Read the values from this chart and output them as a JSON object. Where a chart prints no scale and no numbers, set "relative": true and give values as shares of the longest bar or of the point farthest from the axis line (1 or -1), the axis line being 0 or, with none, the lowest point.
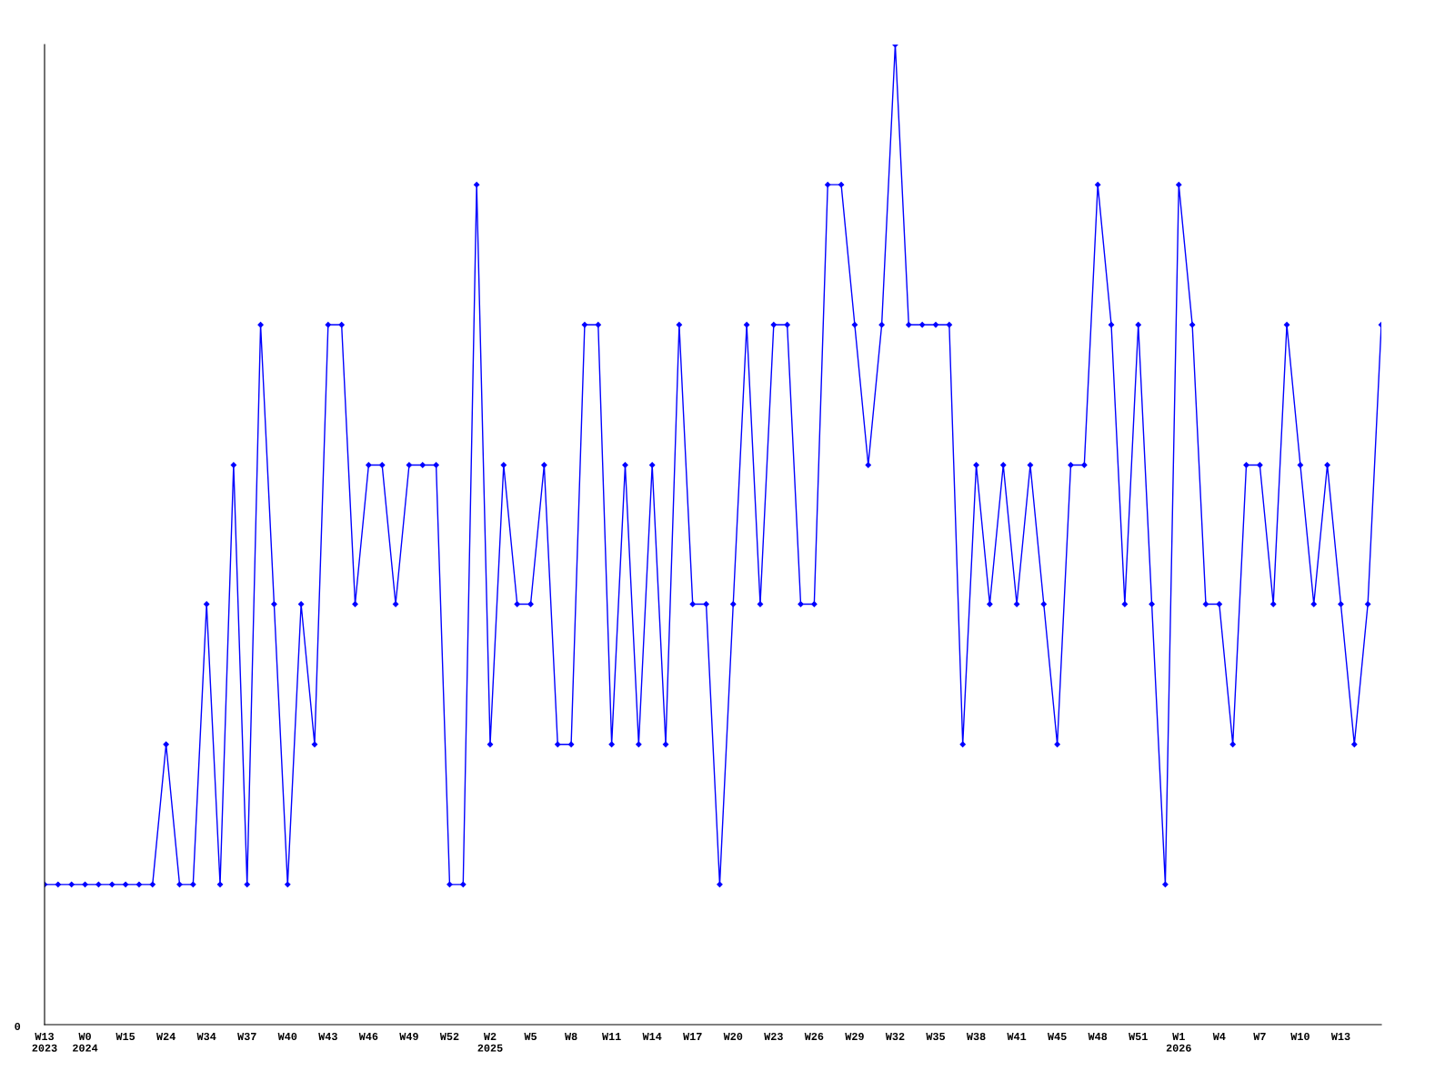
{
  "chart_data": {
    "type": "line",
    "relative": true,
    "color": "#0000ff",
    "marker": "diamond",
    "grid": false,
    "legend": false,
    "annotations": [
      "0"
    ],
    "categories": [
      "W13\n2023",
      null,
      null,
      "W0\n2024",
      null,
      null,
      "W15",
      null,
      null,
      "W24",
      null,
      null,
      "W34",
      null,
      null,
      "W37",
      null,
      null,
      "W40",
      null,
      null,
      "W43",
      null,
      null,
      "W46",
      null,
      null,
      "W49",
      null,
      null,
      "W52",
      null,
      null,
      "W2\n2025",
      null,
      null,
      "W5",
      null,
      null,
      "W8",
      null,
      null,
      "W11",
      null,
      null,
      "W14",
      null,
      null,
      "W17",
      null,
      null,
      "W20",
      null,
      null,
      "W23",
      null,
      null,
      "W26",
      null,
      null,
      "W29",
      null,
      null,
      "W32",
      null,
      null,
      "W35",
      null,
      null,
      "W38",
      null,
      null,
      "W41",
      null,
      null,
      "W45",
      null,
      null,
      "W48",
      null,
      null,
      "W51",
      null,
      null,
      "W1\n2026",
      null,
      null,
      "W4",
      null,
      null,
      "W7",
      null,
      null,
      "W10",
      null,
      null,
      "W13",
      null,
      null,
      null
    ],
    "values": [
      0.143,
      0.143,
      0.143,
      0.143,
      0.143,
      0.143,
      0.143,
      0.143,
      0.143,
      0.286,
      0.143,
      0.143,
      0.429,
      0.143,
      0.571,
      0.143,
      0.714,
      0.429,
      0.143,
      0.429,
      0.286,
      0.714,
      0.714,
      0.429,
      0.571,
      0.571,
      0.429,
      0.571,
      0.571,
      0.571,
      0.143,
      0.143,
      0.857,
      0.286,
      0.571,
      0.429,
      0.429,
      0.571,
      0.286,
      0.286,
      0.714,
      0.714,
      0.286,
      0.571,
      0.286,
      0.571,
      0.286,
      0.714,
      0.429,
      0.429,
      0.143,
      0.429,
      0.714,
      0.429,
      0.714,
      0.714,
      0.429,
      0.429,
      0.857,
      0.857,
      0.714,
      0.571,
      0.714,
      1,
      0.714,
      0.714,
      0.714,
      0.714,
      0.286,
      0.571,
      0.429,
      0.571,
      0.429,
      0.571,
      0.429,
      0.286,
      0.571,
      0.571,
      0.857,
      0.714,
      0.429,
      0.714,
      0.429,
      0.143,
      0.857,
      0.714,
      0.429,
      0.429,
      0.286,
      0.571,
      0.571,
      0.429,
      0.714,
      0.571,
      0.429,
      0.571,
      0.429,
      0.286,
      0.429,
      0.714
    ]
  }
}
